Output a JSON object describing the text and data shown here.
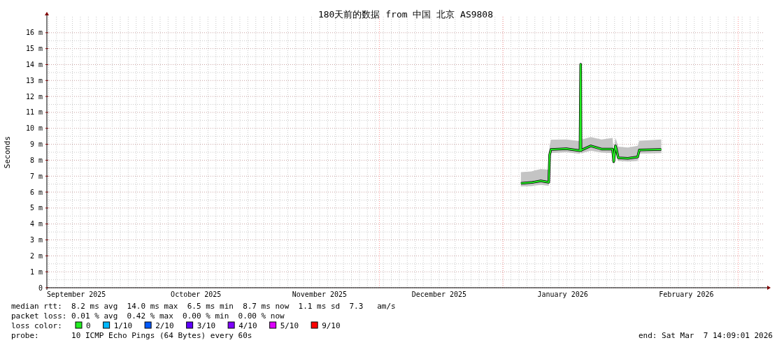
{
  "chart_data": {
    "type": "line",
    "title": "180天前的数据 from 中国 北京 AS9808",
    "ylabel": "Seconds",
    "legend_title": "loss color:",
    "legend": "bottom",
    "grid": true,
    "xlim": [
      "2025-09-08T14:09",
      "2026-03-07T14:09"
    ],
    "xticks": [
      {
        "value": "2025-09-16",
        "label": "September 2025"
      },
      {
        "value": "2025-10-16",
        "label": "October 2025"
      },
      {
        "value": "2025-11-16",
        "label": "November 2025"
      },
      {
        "value": "2025-12-16",
        "label": "December 2025"
      },
      {
        "value": "2026-01-16",
        "label": "January 2026"
      },
      {
        "value": "2026-02-16",
        "label": "February 2026"
      }
    ],
    "ylim": [
      0,
      17
    ],
    "yticks": [
      0,
      {
        "value": 1,
        "label": "1 m"
      },
      {
        "value": 2,
        "label": "2 m"
      },
      {
        "value": 3,
        "label": "3 m"
      },
      {
        "value": 4,
        "label": "4 m"
      },
      {
        "value": 5,
        "label": "5 m"
      },
      {
        "value": 6,
        "label": "6 m"
      },
      {
        "value": 7,
        "label": "7 m"
      },
      {
        "value": 8,
        "label": "8 m"
      },
      {
        "value": 9,
        "label": "9 m"
      },
      {
        "value": 10,
        "label": "10 m"
      },
      {
        "value": 11,
        "label": "11 m"
      },
      {
        "value": 12,
        "label": "12 m"
      },
      {
        "value": 13,
        "label": "13 m"
      },
      {
        "value": 14,
        "label": "14 m"
      },
      {
        "value": 15,
        "label": "15 m"
      },
      {
        "value": 16,
        "label": "16 m"
      }
    ],
    "x": [
      "2026-01-05T12:00",
      "2026-01-08T03:00",
      "2026-01-10T12:00",
      "2026-01-12T12:00",
      "2026-01-12T17:00",
      "2026-01-13T01:00",
      "2026-01-16T22:00",
      "2026-01-20T08:00",
      "2026-01-20T12:00",
      "2026-01-20T14:00",
      "2026-01-20T19:00",
      "2026-01-23T01:00",
      "2026-01-25T17:00",
      "2026-01-28T12:00",
      "2026-01-28T19:00",
      "2026-01-29T05:00",
      "2026-01-29T12:00",
      "2026-01-29T22:00",
      "2026-02-01T08:00",
      "2026-02-03T19:00",
      "2026-02-04T05:00",
      "2026-02-06T00:00",
      "2026-02-09T17:00"
    ],
    "series": [
      {
        "name": "0",
        "color": "#22ee22",
        "values": [
          6.55,
          6.6,
          6.7,
          6.62,
          8.33,
          8.68,
          8.72,
          8.6,
          14.02,
          8.6,
          8.65,
          8.9,
          8.7,
          8.7,
          7.91,
          8.9,
          8.66,
          8.15,
          8.12,
          8.2,
          8.64,
          8.65,
          8.68
        ],
        "lower": [
          6.35,
          6.38,
          6.45,
          6.4,
          8.1,
          8.45,
          8.5,
          8.4,
          13.6,
          8.4,
          8.45,
          8.6,
          8.48,
          8.45,
          7.7,
          8.6,
          8.4,
          7.95,
          7.92,
          7.95,
          8.42,
          8.42,
          8.45
        ],
        "upper": [
          7.25,
          7.3,
          7.45,
          7.4,
          8.9,
          9.29,
          9.3,
          9.2,
          14.63,
          9.2,
          9.3,
          9.45,
          9.3,
          9.4,
          8.5,
          9.4,
          9.2,
          8.85,
          8.8,
          8.9,
          9.22,
          9.25,
          9.3
        ]
      },
      {
        "name": "1/10",
        "color": "#00b8ff",
        "values": [
          null,
          null,
          null,
          null,
          null,
          null,
          null,
          null,
          null,
          null,
          null,
          null,
          null,
          null,
          null,
          null,
          null,
          null,
          null,
          null,
          null,
          null,
          null
        ]
      },
      {
        "name": "2/10",
        "color": "#0059ff",
        "values": [
          null,
          null,
          null,
          null,
          null,
          null,
          null,
          null,
          null,
          null,
          null,
          null,
          null,
          null,
          null,
          null,
          null,
          null,
          null,
          null,
          null,
          null,
          null
        ]
      },
      {
        "name": "3/10",
        "color": "#5e00ff",
        "values": [
          null,
          null,
          null,
          null,
          null,
          null,
          null,
          null,
          null,
          null,
          null,
          null,
          null,
          null,
          null,
          null,
          null,
          null,
          null,
          null,
          null,
          null,
          null
        ]
      },
      {
        "name": "4/10",
        "color": "#7e00ff",
        "values": [
          null,
          null,
          null,
          null,
          null,
          null,
          null,
          null,
          null,
          null,
          null,
          null,
          null,
          null,
          null,
          null,
          null,
          null,
          null,
          null,
          null,
          null,
          null
        ]
      },
      {
        "name": "5/10",
        "color": "#dd00ff",
        "values": [
          null,
          null,
          null,
          null,
          null,
          null,
          null,
          null,
          null,
          null,
          null,
          null,
          null,
          null,
          null,
          null,
          null,
          null,
          null,
          null,
          null,
          null,
          null
        ]
      },
      {
        "name": "9/10",
        "color": "#ff0000",
        "values": [
          null,
          null,
          null,
          null,
          null,
          null,
          null,
          null,
          null,
          null,
          null,
          null,
          null,
          null,
          null,
          null,
          null,
          null,
          null,
          null,
          null,
          null,
          null
        ]
      }
    ],
    "ref_lines": [
      {
        "axis": "x",
        "value": "2025-12-01",
        "color": "#ff9090",
        "line_style": "dotted"
      },
      {
        "axis": "x",
        "value": "2026-01-01",
        "color": "#ff9090",
        "line_style": "dotted"
      },
      {
        "axis": "x",
        "value": "2026-03-01",
        "color": "#ff9090",
        "line_style": "dotted"
      }
    ],
    "annotations": [
      "median rtt:  8.2 ms avg  14.0 ms max  6.5 ms min  8.7 ms now  1.1 ms sd  7.3   am/s",
      "packet loss: 0.01 % avg  0.42 % max  0.00 % min  0.00 % now",
      "probe:       10 ICMP Echo Pings (64 Bytes) every 60s",
      "end: Sat Mar  7 14:09:01 2026"
    ]
  }
}
